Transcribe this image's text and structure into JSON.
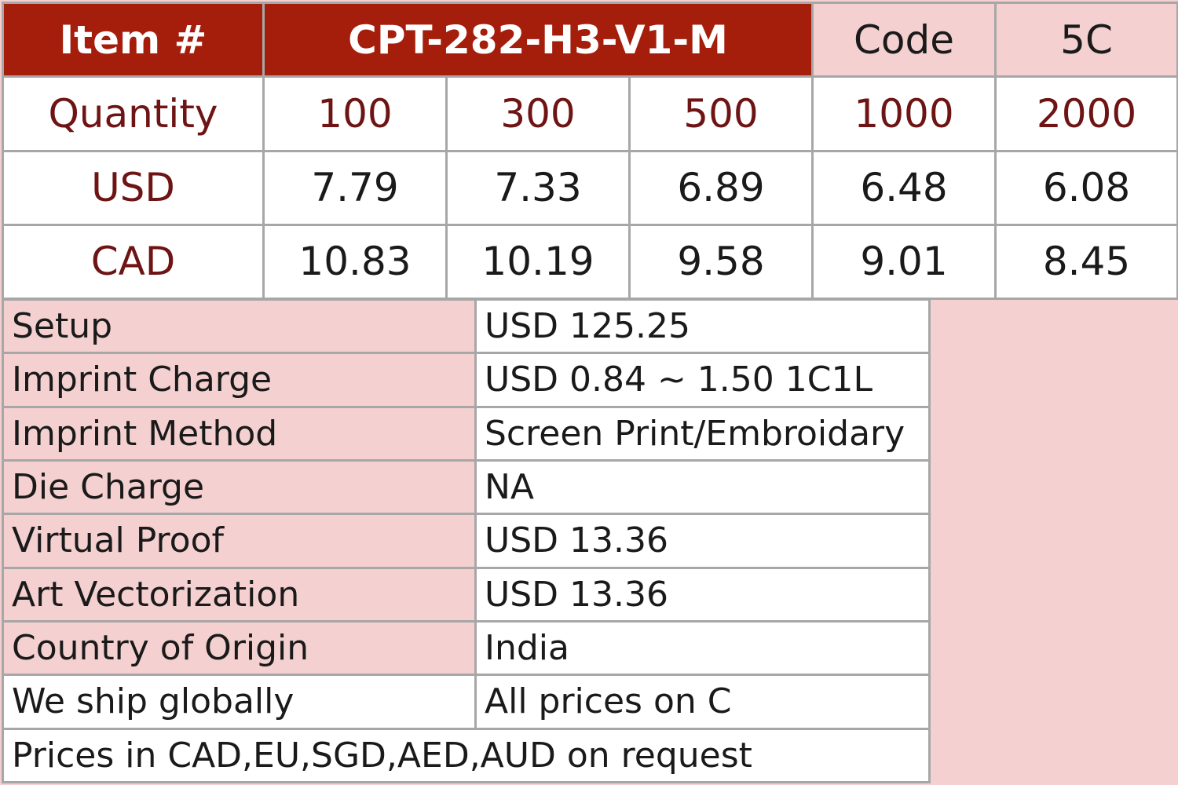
{
  "header": {
    "item_label": "Item #",
    "item_code": "CPT-282-H3-V1-M",
    "code_label": "Code",
    "code_value": "5C"
  },
  "pricing": {
    "quantity_label": "Quantity",
    "quantities": [
      "100",
      "300",
      "500",
      "1000",
      "2000"
    ],
    "rows": [
      {
        "currency": "USD",
        "prices": [
          "7.79",
          "7.33",
          "6.89",
          "6.48",
          "6.08"
        ]
      },
      {
        "currency": "CAD",
        "prices": [
          "10.83",
          "10.19",
          "9.58",
          "9.01",
          "8.45"
        ]
      }
    ]
  },
  "details": [
    {
      "key": "Setup",
      "value": "USD 125.25"
    },
    {
      "key": "Imprint Charge",
      "value": "USD 0.84 ~ 1.50 1C1L"
    },
    {
      "key": "Imprint Method",
      "value": "Screen Print/Embroidary"
    },
    {
      "key": "Die Charge",
      "value": "NA"
    },
    {
      "key": "Virtual Proof",
      "value": "USD 13.36"
    },
    {
      "key": "Art Vectorization",
      "value": "USD 13.36"
    },
    {
      "key": "Country of Origin",
      "value": "India"
    },
    {
      "key": "We ship globally",
      "value": "All prices on C"
    }
  ],
  "footer_note": "Prices in CAD,EU,SGD,AED,AUD on request",
  "colors": {
    "header_dark": "#a51e0c",
    "header_light": "#f4d0d0",
    "label_text": "#6e1414",
    "border": "#a7a7a7"
  }
}
